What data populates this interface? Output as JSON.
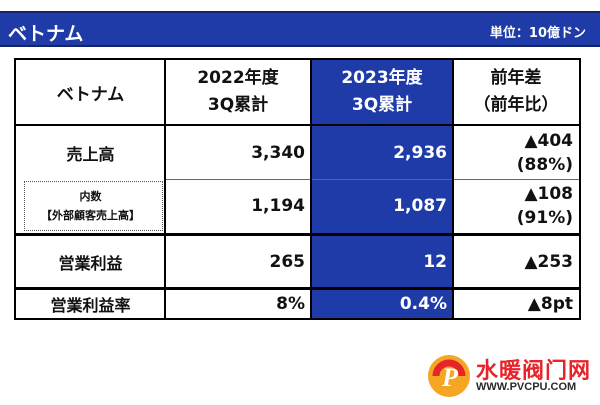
{
  "header": {
    "title": "ベトナム",
    "unit": "単位：10億ドン"
  },
  "table": {
    "corner_label": "ベトナム",
    "col_2022": {
      "line1": "2022年度",
      "line2": "3Q累計"
    },
    "col_2023": {
      "line1": "2023年度",
      "line2": "3Q累計"
    },
    "col_diff": {
      "line1": "前年差",
      "line2": "（前年比）"
    },
    "rows": [
      {
        "label": "売上高",
        "v2022": "3,340",
        "v2023": "2,936",
        "diff1": "▲404",
        "diff2": "(88%)"
      },
      {
        "label_line1": "内数",
        "label_line2": "【外部顧客売上高】",
        "v2022": "1,194",
        "v2023": "1,087",
        "diff1": "▲108",
        "diff2": "(91%)"
      },
      {
        "label": "営業利益",
        "v2022": "265",
        "v2023": "12",
        "diff1": "▲253"
      },
      {
        "label": "営業利益率",
        "v2022": "8%",
        "v2023": "0.4%",
        "diff1": "▲8pt"
      }
    ]
  },
  "watermark": {
    "text": "水暖阀门网",
    "url": "WWW.PVCPU.COM",
    "logo_letter": "P",
    "colors": {
      "red": "#e8242b",
      "orange": "#f5a623"
    }
  },
  "colors": {
    "accent": "#1f3ba8",
    "text": "#111111"
  }
}
